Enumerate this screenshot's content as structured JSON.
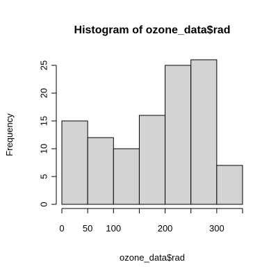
{
  "chart_data": {
    "type": "bar",
    "title": "Histogram of ozone_data$rad",
    "xlabel": "ozone_data$rad",
    "ylabel": "Frequency",
    "bins": [
      {
        "start": 0,
        "end": 50,
        "count": 15
      },
      {
        "start": 50,
        "end": 100,
        "count": 12
      },
      {
        "start": 100,
        "end": 150,
        "count": 10
      },
      {
        "start": 150,
        "end": 200,
        "count": 16
      },
      {
        "start": 200,
        "end": 250,
        "count": 25
      },
      {
        "start": 250,
        "end": 300,
        "count": 26
      },
      {
        "start": 300,
        "end": 350,
        "count": 7
      }
    ],
    "x_ticks": [
      0,
      50,
      100,
      200,
      300
    ],
    "x_axis_range": [
      0,
      350
    ],
    "y_ticks": [
      0,
      5,
      10,
      15,
      20,
      25
    ],
    "ylim": [
      0,
      26
    ],
    "colors": {
      "bar_fill": "#d3d3d3",
      "bar_stroke": "#000000"
    }
  }
}
